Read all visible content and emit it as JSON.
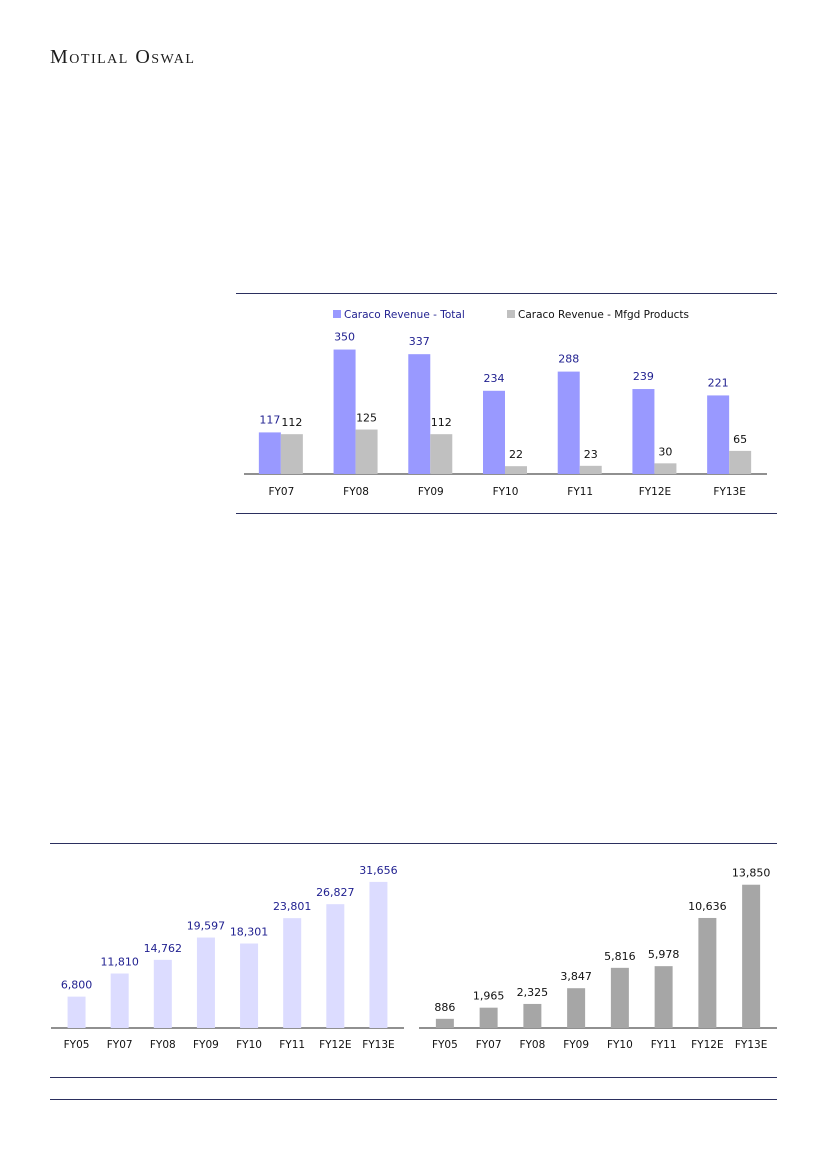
{
  "brand": {
    "logo_text": "Motilal Oswal"
  },
  "colors": {
    "rule": "#2b2f5e",
    "series_total": "#9999ff",
    "series_mfgd": "#c0c0c0",
    "label_navy": "#1f1f8f",
    "light_bar": "#dcdcff",
    "grey_bar": "#a6a6a6"
  },
  "chart_data": [
    {
      "type": "bar",
      "categories": [
        "FY07",
        "FY08",
        "FY09",
        "FY10",
        "FY11",
        "FY12E",
        "FY13E"
      ],
      "series": [
        {
          "name": "Caraco Revenue - Total",
          "values": [
            117,
            350,
            337,
            234,
            288,
            239,
            221
          ],
          "color": "#9999ff",
          "label_color": "#1f1f8f"
        },
        {
          "name": "Caraco Revenue - Mfgd Products",
          "values": [
            112,
            125,
            112,
            22,
            23,
            30,
            65
          ],
          "color": "#c0c0c0",
          "label_color": "#111111"
        }
      ],
      "legend": "top",
      "ylim": [
        0,
        360
      ],
      "grid": false
    },
    {
      "type": "bar",
      "categories": [
        "FY05",
        "FY07",
        "FY08",
        "FY09",
        "FY10",
        "FY11",
        "FY12E",
        "FY13E"
      ],
      "values": [
        6800,
        11810,
        14762,
        19597,
        18301,
        23801,
        26827,
        31656
      ],
      "value_labels": [
        "6,800",
        "11,810",
        "14,762",
        "19,597",
        "18,301",
        "23,801",
        "26,827",
        "31,656"
      ],
      "color": "#dcdcff",
      "label_color": "#1f1f8f",
      "ylim": [
        0,
        32500
      ],
      "grid": false
    },
    {
      "type": "bar",
      "categories": [
        "FY05",
        "FY07",
        "FY08",
        "FY09",
        "FY10",
        "FY11",
        "FY12E",
        "FY13E"
      ],
      "values": [
        886,
        1965,
        2325,
        3847,
        5816,
        5978,
        10636,
        13850
      ],
      "value_labels": [
        "886",
        "1,965",
        "2,325",
        "3,847",
        "5,816",
        "5,978",
        "10,636",
        "13,850"
      ],
      "color": "#a6a6a6",
      "label_color": "#111111",
      "ylim": [
        0,
        14500
      ],
      "grid": false
    }
  ]
}
